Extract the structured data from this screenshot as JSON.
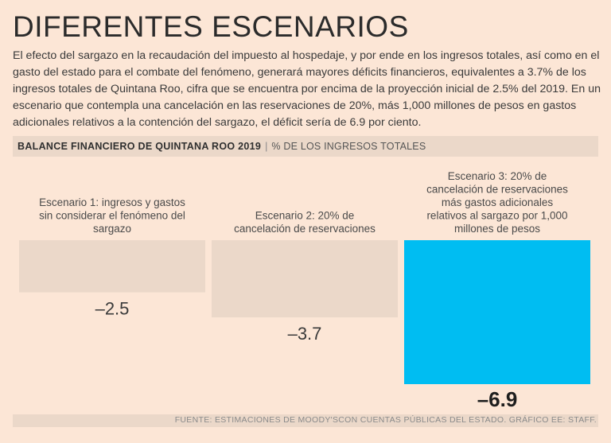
{
  "title": "DIFERENTES ESCENARIOS",
  "intro": "El efecto del sargazo en la recaudación del impuesto al hospedaje, y por ende en los ingresos totales, así como en el gasto del estado para el combate del fenómeno, generará mayores déficits financieros, equivalentes a 3.7% de los ingresos totales de Quintana Roo, cifra que se encuentra por encima de la proyección inicial de 2.5% del 2019. En un escenario que contempla una cancelación en las reservaciones de 20%, más 1,000 millones de pesos en gastos adicionales relativos a la contención del sargazo, el déficit sería de 6.9 por ciento.",
  "chart_header": {
    "title": "BALANCE FINANCIERO DE QUINTANA ROO 2019",
    "separator": "|",
    "subtitle": "% DE LOS INGRESOS TOTALES"
  },
  "source": "FUENTE: ESTIMACIONES DE MOODY'SCON CUENTAS PÚBLICAS DEL ESTADO. GRÁFICO EE: STAFF.",
  "colors": {
    "background": "#fce6d6",
    "bar_neutral": "#ebd8c9",
    "bar_highlight": "#00bdf2"
  },
  "chart_data": {
    "type": "bar",
    "title": "BALANCE FINANCIERO DE QUINTANA ROO 2019",
    "ylabel": "% DE LOS INGRESOS TOTALES",
    "xlabel": "",
    "ylim": [
      -6.9,
      0
    ],
    "grid": false,
    "categories": [
      [
        "Escenario 1: ingresos y gastos",
        "sin considerar el fenómeno del",
        "sargazo"
      ],
      [
        "Escenario 2: 20% de",
        "cancelación de reservaciones"
      ],
      [
        "Escenario 3: 20% de",
        "cancelación de reservaciones",
        "más gastos adicionales",
        "relativos al sargazo por 1,000",
        "millones de pesos"
      ]
    ],
    "values": [
      -2.5,
      -3.7,
      -6.9
    ],
    "value_labels": [
      "–2.5",
      "–3.7",
      "–6.9"
    ],
    "highlight_index": 2
  }
}
